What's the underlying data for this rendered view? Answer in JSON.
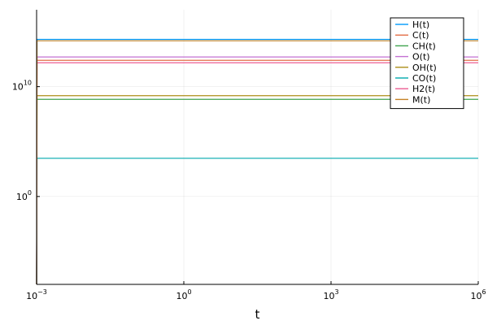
{
  "chart_data": {
    "type": "line",
    "xlabel": "t",
    "ylabel": "",
    "x_scale": "log",
    "y_scale": "log",
    "xlim": [
      0.001,
      1000000
    ],
    "ylim": [
      1e-08,
      1e+17
    ],
    "x_ticks": [
      {
        "value": 0.001,
        "base": "10",
        "exp": "−3"
      },
      {
        "value": 1,
        "base": "10",
        "exp": "0"
      },
      {
        "value": 1000,
        "base": "10",
        "exp": "3"
      },
      {
        "value": 1000000,
        "base": "10",
        "exp": "6"
      }
    ],
    "y_ticks": [
      {
        "value": 1,
        "base": "10",
        "exp": "0"
      },
      {
        "value": 10000000000,
        "base": "10",
        "exp": "10"
      }
    ],
    "grid": true,
    "legend_position": "top-right",
    "series": [
      {
        "name": "H(t)",
        "color": "#009AFA",
        "start": 1e-08,
        "plateau": 200000000000000.0
      },
      {
        "name": "C(t)",
        "color": "#E36F47",
        "start": 1e-08,
        "plateau": 2500000000000.0
      },
      {
        "name": "CH(t)",
        "color": "#3EA44E",
        "start": 1e-08,
        "plateau": 700000000.0
      },
      {
        "name": "O(t)",
        "color": "#C371D2",
        "start": 1e-08,
        "plateau": 5000000000000.0
      },
      {
        "name": "OH(t)",
        "color": "#AC8E18",
        "start": 1e-08,
        "plateau": 1500000000.0
      },
      {
        "name": "CO(t)",
        "color": "#00A9AD",
        "start": 1e-08,
        "plateau": 3000.0
      },
      {
        "name": "H2(t)",
        "color": "#ED5E93",
        "start": 1e-08,
        "plateau": 1500000000000.0
      },
      {
        "name": "M(t)",
        "color": "#C68225",
        "start": 1e-08,
        "plateau": 150000000000000.0
      }
    ]
  }
}
